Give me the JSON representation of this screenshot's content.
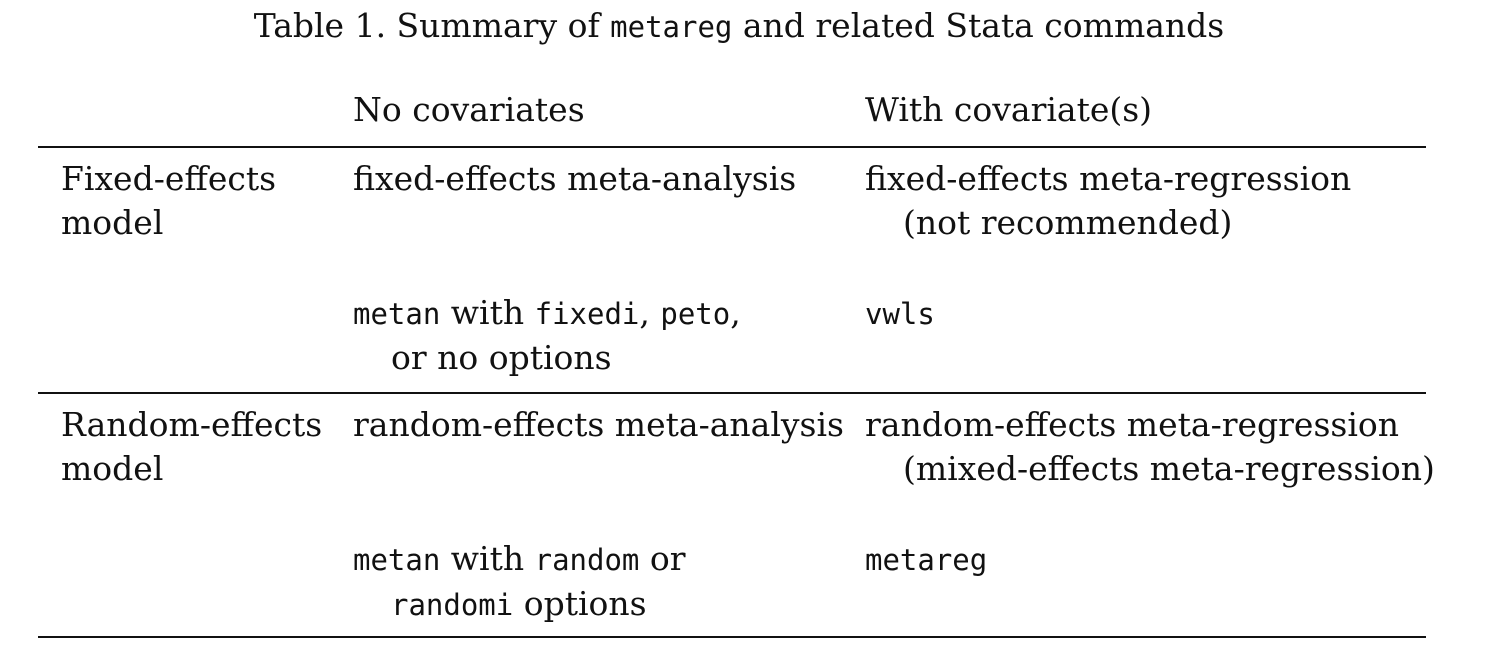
{
  "caption": {
    "prefix": "Table 1. Summary of ",
    "command": "metareg",
    "suffix": " and related Stata commands"
  },
  "header": {
    "col_no_cov": "No covariates",
    "col_with_cov": "With covariate(s)"
  },
  "fixed": {
    "row_label_line1": "Fixed-effects",
    "row_label_line2": "model",
    "no_cov_method": "fixed-effects meta-analysis",
    "with_cov_method_line1": "fixed-effects meta-regression",
    "with_cov_method_line2": "(not recommended)",
    "no_cov_cmd": {
      "cmd": "metan",
      "w1": " with ",
      "opt1": "fixedi",
      "sep1": ", ",
      "opt2": "peto",
      "sep2": ",",
      "line2": "or no options"
    },
    "with_cov_cmd": "vwls"
  },
  "random": {
    "row_label_line1": "Random-effects",
    "row_label_line2": "model",
    "no_cov_method": "random-effects meta-analysis",
    "with_cov_method_line1": "random-effects meta-regression",
    "with_cov_method_line2": "(mixed-effects meta-regression)",
    "no_cov_cmd": {
      "cmd": "metan",
      "w1": " with ",
      "opt1": "random",
      "w2": " or",
      "opt2": "randomi",
      "w3": " options"
    },
    "with_cov_cmd": "metareg"
  }
}
